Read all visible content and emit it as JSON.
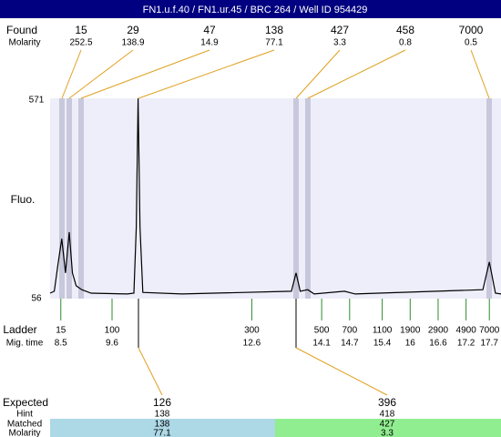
{
  "header": {
    "title": "FN1.u.f.40 / FN1.ur.45 / BRC 264 / Well ID 954429"
  },
  "found": {
    "label": "Found",
    "molarity_label": "Molarity",
    "sizes": [
      15,
      29,
      47,
      138,
      427,
      458,
      7000
    ],
    "molarity": [
      252.5,
      138.9,
      14.9,
      77.1,
      3.3,
      0.8,
      0.5
    ]
  },
  "chart_data": {
    "type": "line",
    "y_label": "Fluo.",
    "color": "#000000",
    "x": [
      8.27,
      8.36,
      8.44,
      8.52,
      8.6,
      8.68,
      8.75,
      8.83,
      8.95,
      9.15,
      9.93,
      10.07,
      10.12,
      10.16,
      10.2,
      10.26,
      11.1,
      13.45,
      13.55,
      13.64,
      13.8,
      13.94,
      14.59,
      14.82,
      17.56,
      17.7,
      17.83,
      17.95
    ],
    "values": [
      70,
      75,
      145,
      210,
      122,
      227,
      122,
      89,
      79,
      70,
      68,
      70,
      239,
      571,
      239,
      72,
      68,
      75,
      122,
      75,
      79,
      68,
      75,
      68,
      79,
      150,
      70,
      68
    ],
    "xlim": [
      8.27,
      17.95
    ],
    "ylim": [
      56,
      571
    ],
    "yticks": [
      56,
      571
    ]
  },
  "ladder": {
    "label": "Ladder",
    "time_label": "Mig. time",
    "sizes": [
      15,
      100,
      300,
      500,
      700,
      1100,
      1900,
      2900,
      4900,
      7000
    ],
    "times": [
      8.5,
      9.6,
      12.6,
      14.1,
      14.7,
      15.4,
      16,
      16.6,
      17.2,
      17.7
    ]
  },
  "expected": {
    "label": "Expected",
    "hint_label": "Hint",
    "matched_label": "Matched",
    "molarity_label": "Molarity",
    "sizes": [
      126,
      396
    ],
    "hint": [
      138,
      418
    ],
    "matched": [
      138,
      427
    ],
    "molarity": [
      77.1,
      3.3
    ]
  }
}
